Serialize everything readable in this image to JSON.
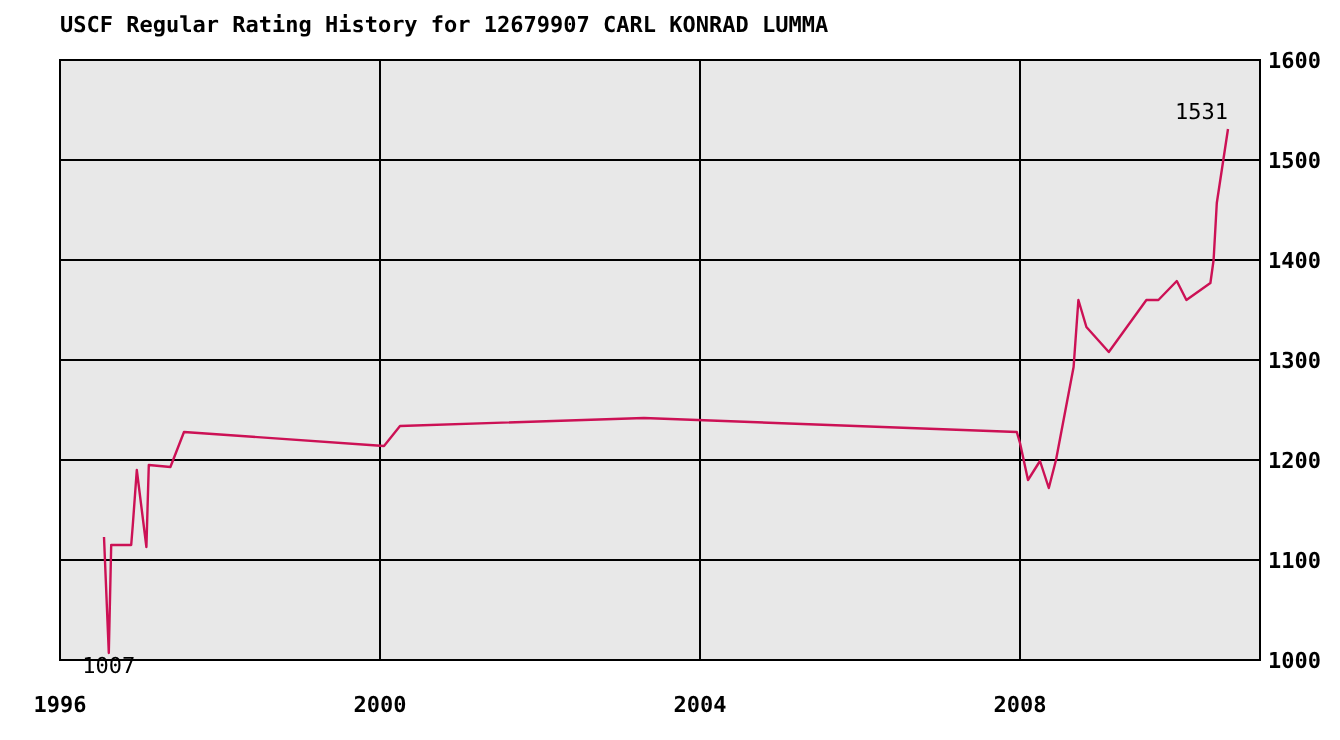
{
  "chart_data": {
    "type": "line",
    "title": "USCF Regular Rating History for 12679907 CARL KONRAD LUMMA",
    "x": [
      1996.55,
      1996.61,
      1996.64,
      1996.89,
      1996.91,
      1996.96,
      1997.08,
      1997.11,
      1997.38,
      1997.55,
      2000.05,
      2000.25,
      2003.3,
      2007.96,
      2008.0,
      2008.1,
      2008.25,
      2008.36,
      2008.45,
      2008.67,
      2008.73,
      2008.83,
      2009.11,
      2009.58,
      2009.73,
      2009.96,
      2010.08,
      2010.38,
      2010.42,
      2010.46,
      2010.6
    ],
    "series": [
      {
        "color": "#cc1155",
        "values": [
          1123,
          1007,
          1115,
          1115,
          1135,
          1190,
          1113,
          1195,
          1193,
          1228,
          1214,
          1234,
          1242,
          1228,
          1217,
          1180,
          1199,
          1172,
          1200,
          1293,
          1360,
          1333,
          1308,
          1360,
          1360,
          1379,
          1360,
          1377,
          1400,
          1457,
          1531
        ]
      }
    ],
    "xlim": [
      1996,
      2011
    ],
    "xticks": [
      1996,
      2000,
      2004,
      2008
    ],
    "ylim": [
      1000,
      1600
    ],
    "yticks": [
      1000,
      1100,
      1200,
      1300,
      1400,
      1500,
      1600
    ],
    "grid": true,
    "annotations": [
      {
        "text": "1007",
        "x": 1996.61,
        "y": 1007
      },
      {
        "text": "1531",
        "x": 2010.6,
        "y": 1531
      }
    ]
  }
}
